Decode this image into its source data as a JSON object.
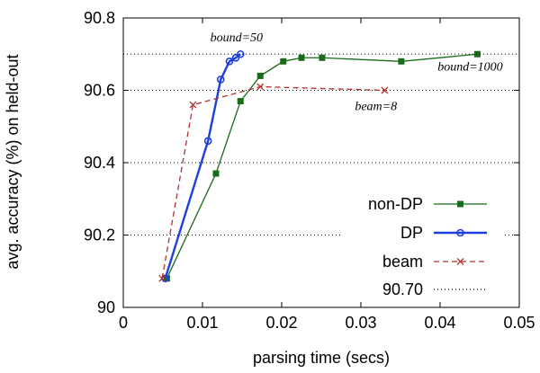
{
  "chart_data": {
    "type": "line",
    "xlabel": "parsing time (secs)",
    "ylabel": "avg. accuracy (%) on held-out",
    "xlim": [
      0,
      0.05
    ],
    "ylim": [
      90,
      90.8
    ],
    "x_ticks": [
      0,
      0.01,
      0.02,
      0.03,
      0.04,
      0.05
    ],
    "x_tick_labels": [
      "0",
      "0.01",
      "0.02",
      "0.03",
      "0.04",
      "0.05"
    ],
    "y_ticks": [
      90,
      90.2,
      90.4,
      90.6,
      90.8
    ],
    "y_tick_labels": [
      "90",
      "90.2",
      "90.4",
      "90.6",
      "90.8"
    ],
    "grid": false,
    "legend_position": "bottom-right",
    "series": [
      {
        "name": "non-DP",
        "color": "#1a6b1a",
        "marker": "square",
        "dash": "solid",
        "points": [
          [
            0.0055,
            90.08
          ],
          [
            0.0117,
            90.37
          ],
          [
            0.0148,
            90.57
          ],
          [
            0.0173,
            90.64
          ],
          [
            0.0202,
            90.68
          ],
          [
            0.0225,
            90.69
          ],
          [
            0.0251,
            90.69
          ],
          [
            0.0351,
            90.68
          ],
          [
            0.0447,
            90.7
          ]
        ]
      },
      {
        "name": "DP",
        "color": "#1f3fdc",
        "marker": "circle",
        "dash": "solid",
        "points": [
          [
            0.0053,
            90.08
          ],
          [
            0.0107,
            90.46
          ],
          [
            0.0123,
            90.63
          ],
          [
            0.0134,
            90.68
          ],
          [
            0.0142,
            90.69
          ],
          [
            0.0148,
            90.7
          ]
        ]
      },
      {
        "name": "beam",
        "color": "#b03030",
        "marker": "x",
        "dash": "dashed",
        "points": [
          [
            0.0049,
            90.08
          ],
          [
            0.0088,
            90.56
          ],
          [
            0.0173,
            90.61
          ],
          [
            0.033,
            90.6
          ]
        ]
      },
      {
        "name": "90.70",
        "color": "#000000",
        "marker": "none",
        "dash": "dotted",
        "points": [
          [
            0,
            90.7
          ],
          [
            0.05,
            90.7
          ]
        ]
      }
    ],
    "reference_lines": [
      90.6,
      90.4,
      90.2
    ],
    "annotations": [
      {
        "text": "bound=50",
        "x": 0.0143,
        "y": 90.735
      },
      {
        "text": "bound=1000",
        "x": 0.0438,
        "y": 90.655
      },
      {
        "text": "beam=8",
        "x": 0.0319,
        "y": 90.545
      }
    ]
  }
}
